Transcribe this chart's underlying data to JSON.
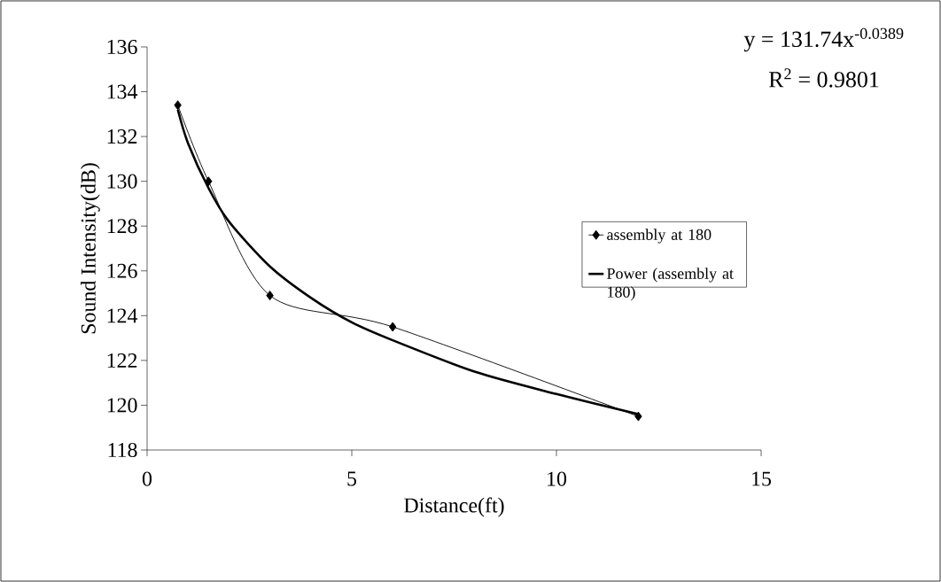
{
  "chart_data": {
    "type": "line",
    "xlabel": "Distance(ft)",
    "ylabel": "Sound Intensity(dB)",
    "xlim": [
      0,
      15
    ],
    "xticks": [
      0,
      5,
      10,
      15
    ],
    "ylim": [
      118,
      136
    ],
    "yticks": [
      118,
      120,
      122,
      124,
      126,
      128,
      130,
      132,
      134,
      136
    ],
    "grid": false,
    "legend": "right",
    "series": [
      {
        "name": "assembly at 180",
        "color": "#000000",
        "marker": "diamond",
        "line_style": "solid",
        "x": [
          0.75,
          1.5,
          3,
          6,
          12
        ],
        "values": [
          133.4,
          130.0,
          124.9,
          123.5,
          119.5
        ]
      },
      {
        "name": "Power (assembly at 180)",
        "type": "line",
        "color": "#000000",
        "marker": "none",
        "line_style": "solid",
        "x": [
          0.75,
          1,
          1.5,
          2,
          3,
          4,
          5,
          6,
          8,
          10,
          12
        ],
        "values": [
          133.2,
          131.7,
          129.7,
          128.2,
          126.2,
          124.8,
          123.7,
          122.9,
          121.5,
          120.5,
          119.6
        ]
      }
    ],
    "annotations": [
      "y = 131.74x$^{-0.0389}$",
      "R$^{2}$ = 0.9801"
    ]
  }
}
